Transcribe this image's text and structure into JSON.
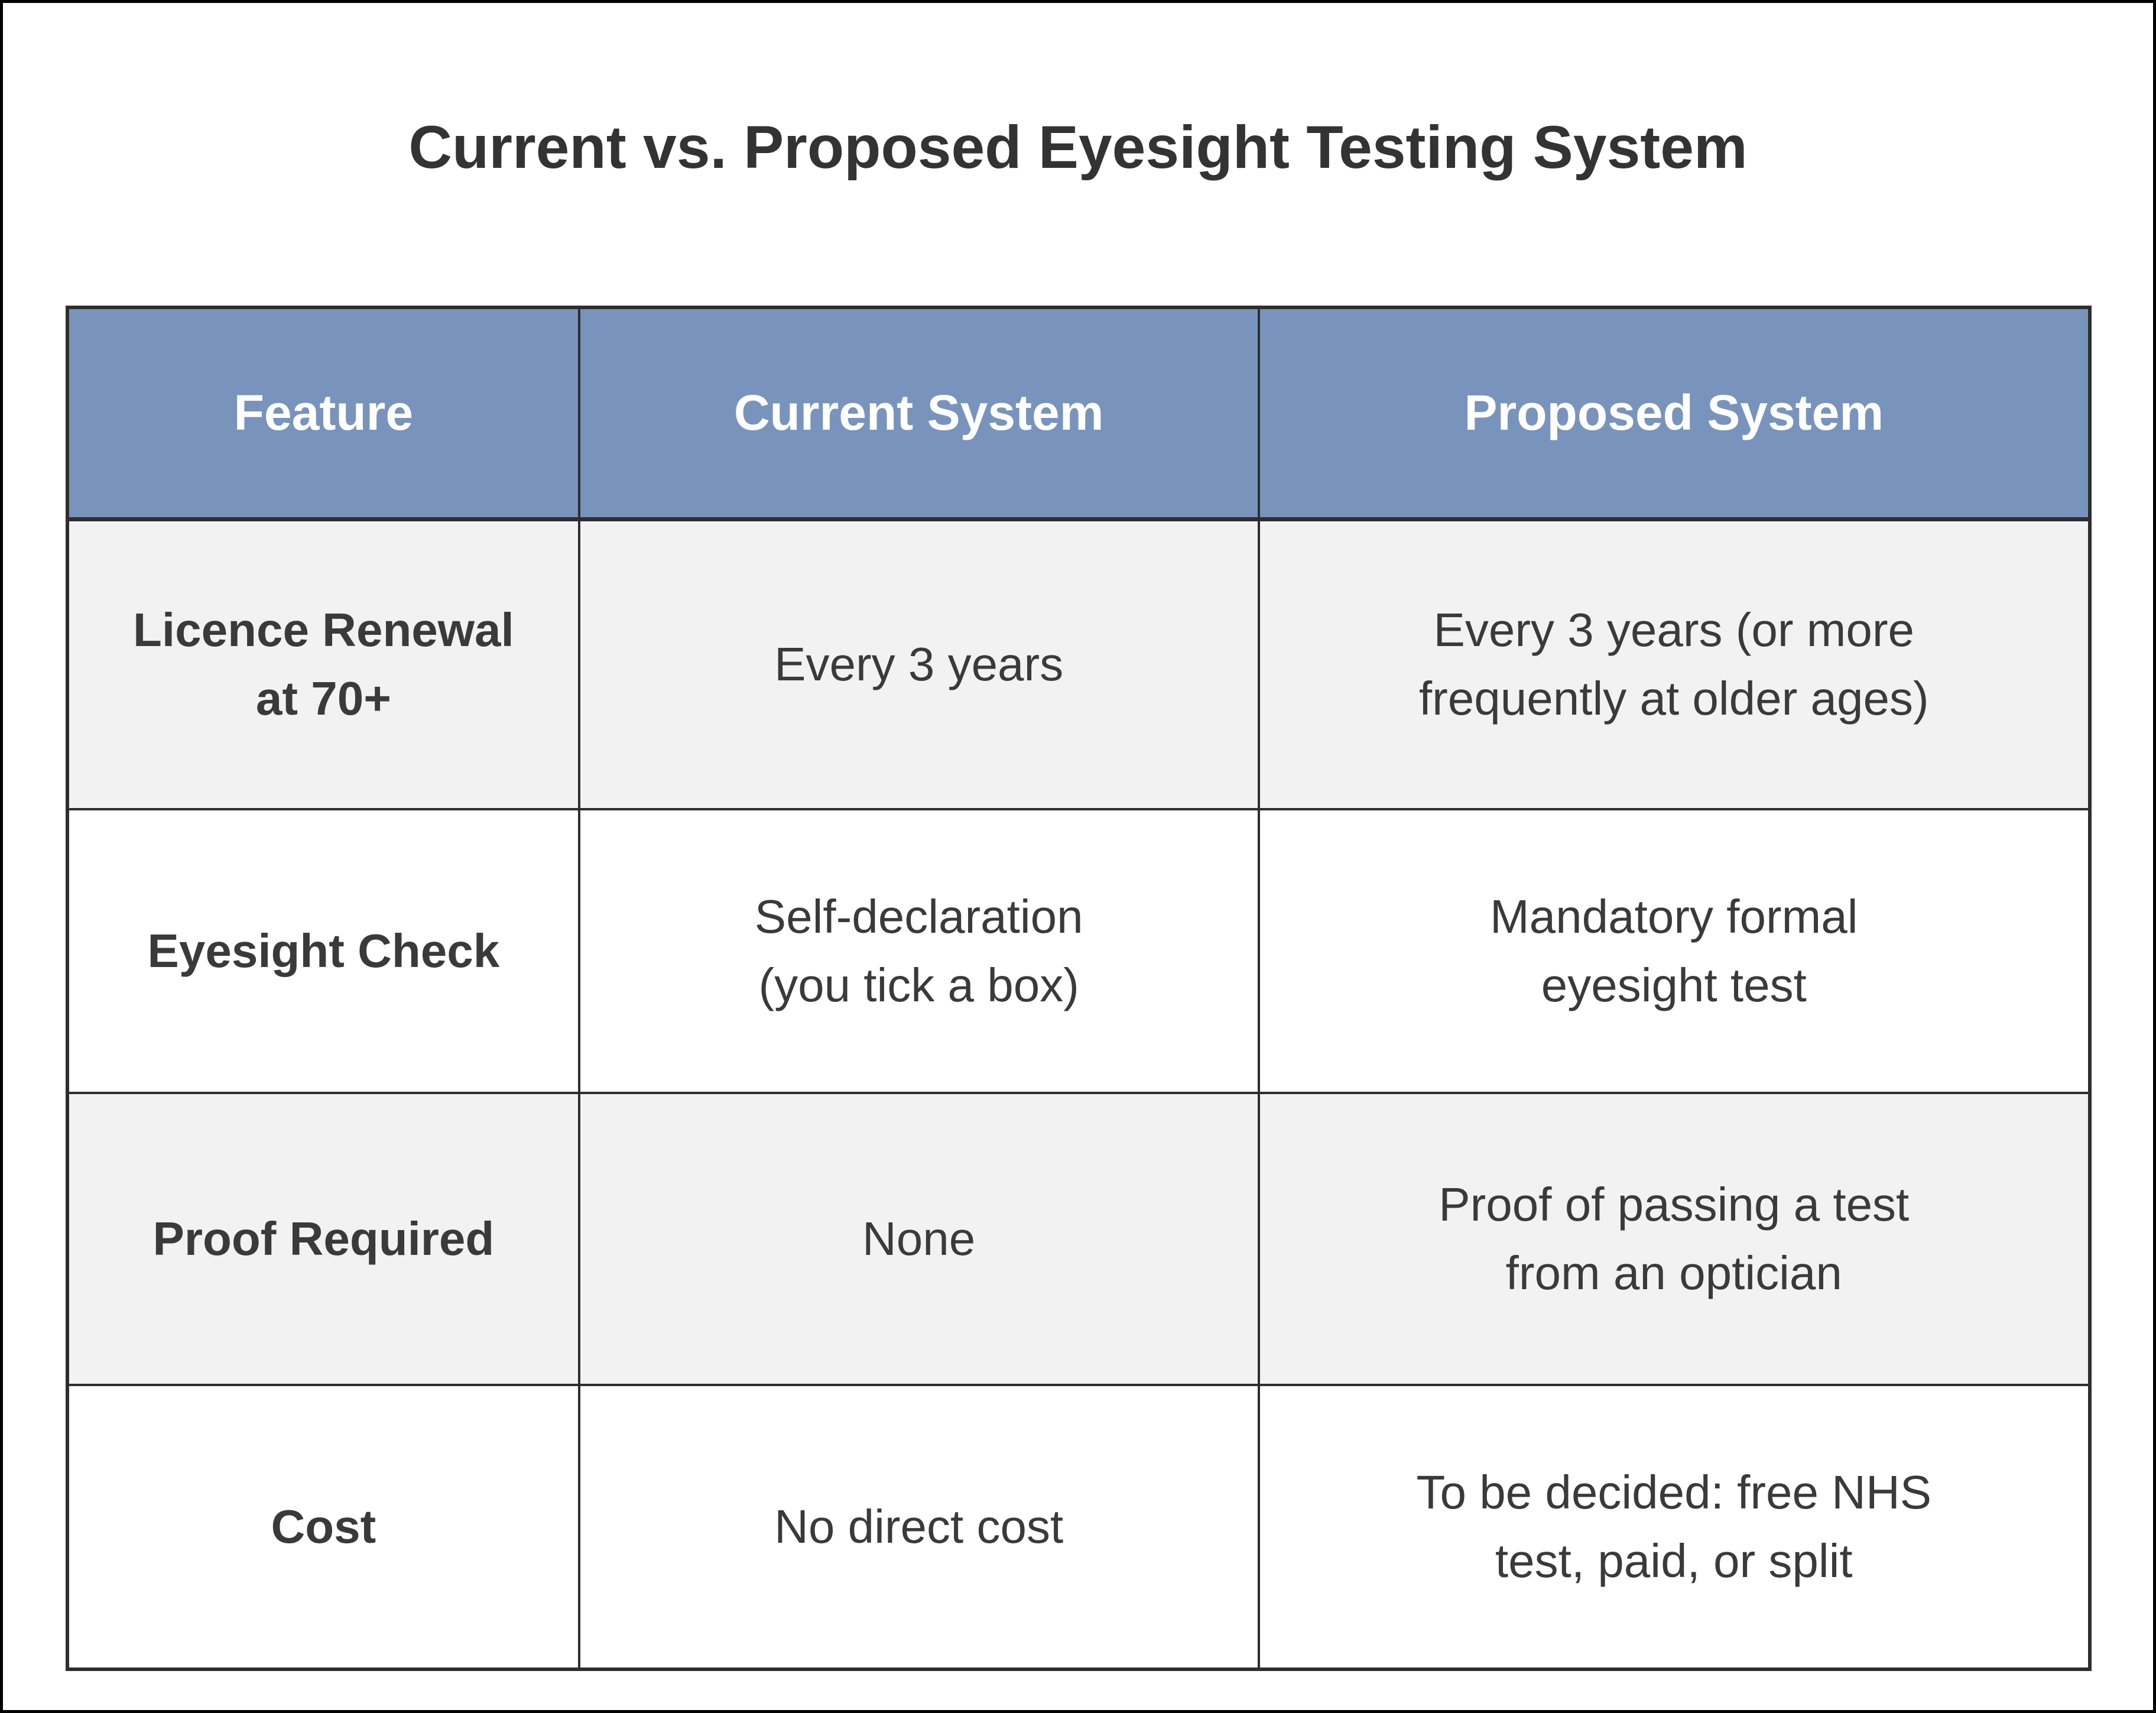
{
  "title": "Current vs. Proposed Eyesight Testing System",
  "colors": {
    "frame": "#000000",
    "title_text": "#333333",
    "header_bg": "#7994BC",
    "header_text": "#FFFFFF",
    "row_bg": "#FFFFFF",
    "row_alt_bg": "#F2F2F2",
    "border": "#2E2E2E",
    "text": "#3A3A3A"
  },
  "table": {
    "headers": [
      "Feature",
      "Current System",
      "Proposed System"
    ],
    "rows": [
      {
        "feature": "Licence Renewal\nat 70+",
        "current": "Every 3 years",
        "proposed": "Every 3 years (or more\nfrequently at older ages)"
      },
      {
        "feature": "Eyesight Check",
        "current": "Self-declaration\n(you tick a box)",
        "proposed": "Mandatory formal\neyesight test"
      },
      {
        "feature": "Proof Required",
        "current": "None",
        "proposed": "Proof of passing a test\nfrom an optician"
      },
      {
        "feature": "Cost",
        "current": "No direct cost",
        "proposed": "To be decided: free NHS\ntest, paid, or split"
      }
    ]
  },
  "chart_data": {
    "type": "table",
    "title": "Current vs. Proposed Eyesight Testing System",
    "columns": [
      "Feature",
      "Current System",
      "Proposed System"
    ],
    "rows": [
      [
        "Licence Renewal at 70+",
        "Every 3 years",
        "Every 3 years (or more frequently at older ages)"
      ],
      [
        "Eyesight Check",
        "Self-declaration (you tick a box)",
        "Mandatory formal eyesight test"
      ],
      [
        "Proof Required",
        "None",
        "Proof of passing a test from an optician"
      ],
      [
        "Cost",
        "No direct cost",
        "To be decided: free NHS test, paid, or split"
      ]
    ],
    "legend_position": "none",
    "grid": true
  }
}
